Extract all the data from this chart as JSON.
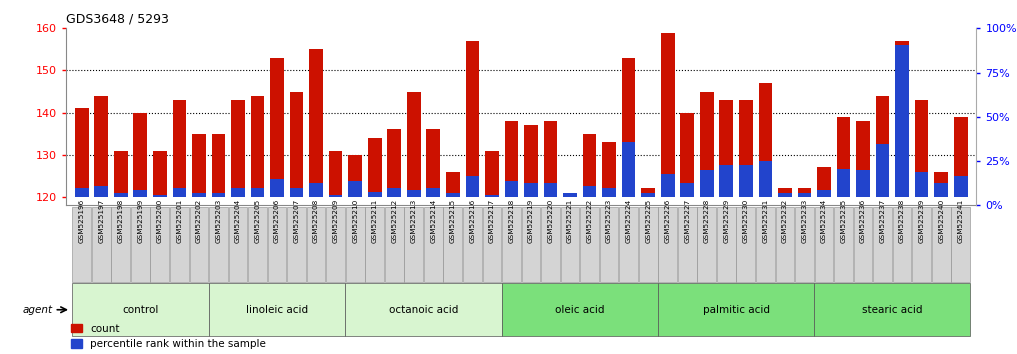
{
  "title": "GDS3648 / 5293",
  "samples": [
    "GSM525196",
    "GSM525197",
    "GSM525198",
    "GSM525199",
    "GSM525200",
    "GSM525201",
    "GSM525202",
    "GSM525203",
    "GSM525204",
    "GSM525205",
    "GSM525206",
    "GSM525207",
    "GSM525208",
    "GSM525209",
    "GSM525210",
    "GSM525211",
    "GSM525212",
    "GSM525213",
    "GSM525214",
    "GSM525215",
    "GSM525216",
    "GSM525217",
    "GSM525218",
    "GSM525219",
    "GSM525220",
    "GSM525221",
    "GSM525222",
    "GSM525223",
    "GSM525224",
    "GSM525225",
    "GSM525226",
    "GSM525227",
    "GSM525228",
    "GSM525229",
    "GSM525230",
    "GSM525231",
    "GSM525232",
    "GSM525233",
    "GSM525234",
    "GSM525235",
    "GSM525236",
    "GSM525237",
    "GSM525238",
    "GSM525239",
    "GSM525240",
    "GSM525241"
  ],
  "count_values": [
    141,
    144,
    131,
    140,
    131,
    143,
    135,
    135,
    143,
    144,
    153,
    145,
    155,
    131,
    130,
    134,
    136,
    145,
    136,
    126,
    157,
    131,
    138,
    137,
    138,
    121,
    135,
    133,
    153,
    122,
    159,
    140,
    145,
    143,
    143,
    147,
    122,
    122,
    127,
    139,
    138,
    144,
    157,
    143,
    126,
    139
  ],
  "percentile_values": [
    5,
    6,
    2,
    4,
    1,
    5,
    2,
    2,
    5,
    5,
    10,
    5,
    8,
    1,
    9,
    3,
    5,
    4,
    5,
    2,
    12,
    1,
    9,
    8,
    8,
    2,
    6,
    5,
    31,
    2,
    13,
    8,
    15,
    18,
    18,
    20,
    2,
    2,
    4,
    16,
    15,
    30,
    86,
    14,
    8,
    12
  ],
  "groups": [
    {
      "label": "control",
      "start": 0,
      "end": 7,
      "color": "#d8f5d0"
    },
    {
      "label": "linoleic acid",
      "start": 7,
      "end": 14,
      "color": "#d8f5d0"
    },
    {
      "label": "octanoic acid",
      "start": 14,
      "end": 22,
      "color": "#d8f5d0"
    },
    {
      "label": "oleic acid",
      "start": 22,
      "end": 30,
      "color": "#7be07b"
    },
    {
      "label": "palmitic acid",
      "start": 30,
      "end": 38,
      "color": "#7be07b"
    },
    {
      "label": "stearic acid",
      "start": 38,
      "end": 46,
      "color": "#7be07b"
    }
  ],
  "ylim_left": [
    118,
    160
  ],
  "ylim_right": [
    0,
    100
  ],
  "y_ticks_left": [
    120,
    130,
    140,
    150,
    160
  ],
  "y_ticks_right": [
    0,
    25,
    50,
    75,
    100
  ],
  "bar_color_count": "#cc1100",
  "bar_color_pct": "#2244cc",
  "background_color": "#ffffff",
  "bar_bottom": 120,
  "agent_label": "agent"
}
